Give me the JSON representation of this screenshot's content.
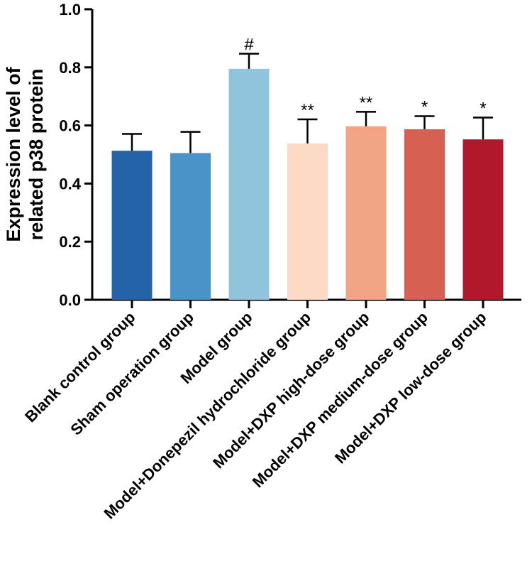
{
  "chart_data": {
    "type": "bar",
    "title": "",
    "xlabel": "",
    "ylabel_lines": [
      "Expression level of",
      "related p38 protein"
    ],
    "ylim": [
      0,
      1.0
    ],
    "yticks": [
      "0.0",
      "0.2",
      "0.4",
      "0.6",
      "0.8",
      "1.0"
    ],
    "grid": false,
    "categories": [
      "Blank control group",
      "Sham operation group",
      "Model group",
      "Model+Donepezil hydrochloride group",
      "Model+DXP high-dose group",
      "Model+DXP medium-dose group",
      "Model+DXP low-dose group"
    ],
    "values": [
      0.513,
      0.505,
      0.795,
      0.538,
      0.597,
      0.587,
      0.552
    ],
    "errors": [
      0.058,
      0.073,
      0.052,
      0.083,
      0.05,
      0.045,
      0.075
    ],
    "annotations": [
      "",
      "",
      "#",
      "**",
      "**",
      "*",
      "*"
    ],
    "colors": [
      "#2563a8",
      "#4a93c8",
      "#90c4dc",
      "#fcdac6",
      "#f2a584",
      "#d66052",
      "#b2182b"
    ]
  }
}
